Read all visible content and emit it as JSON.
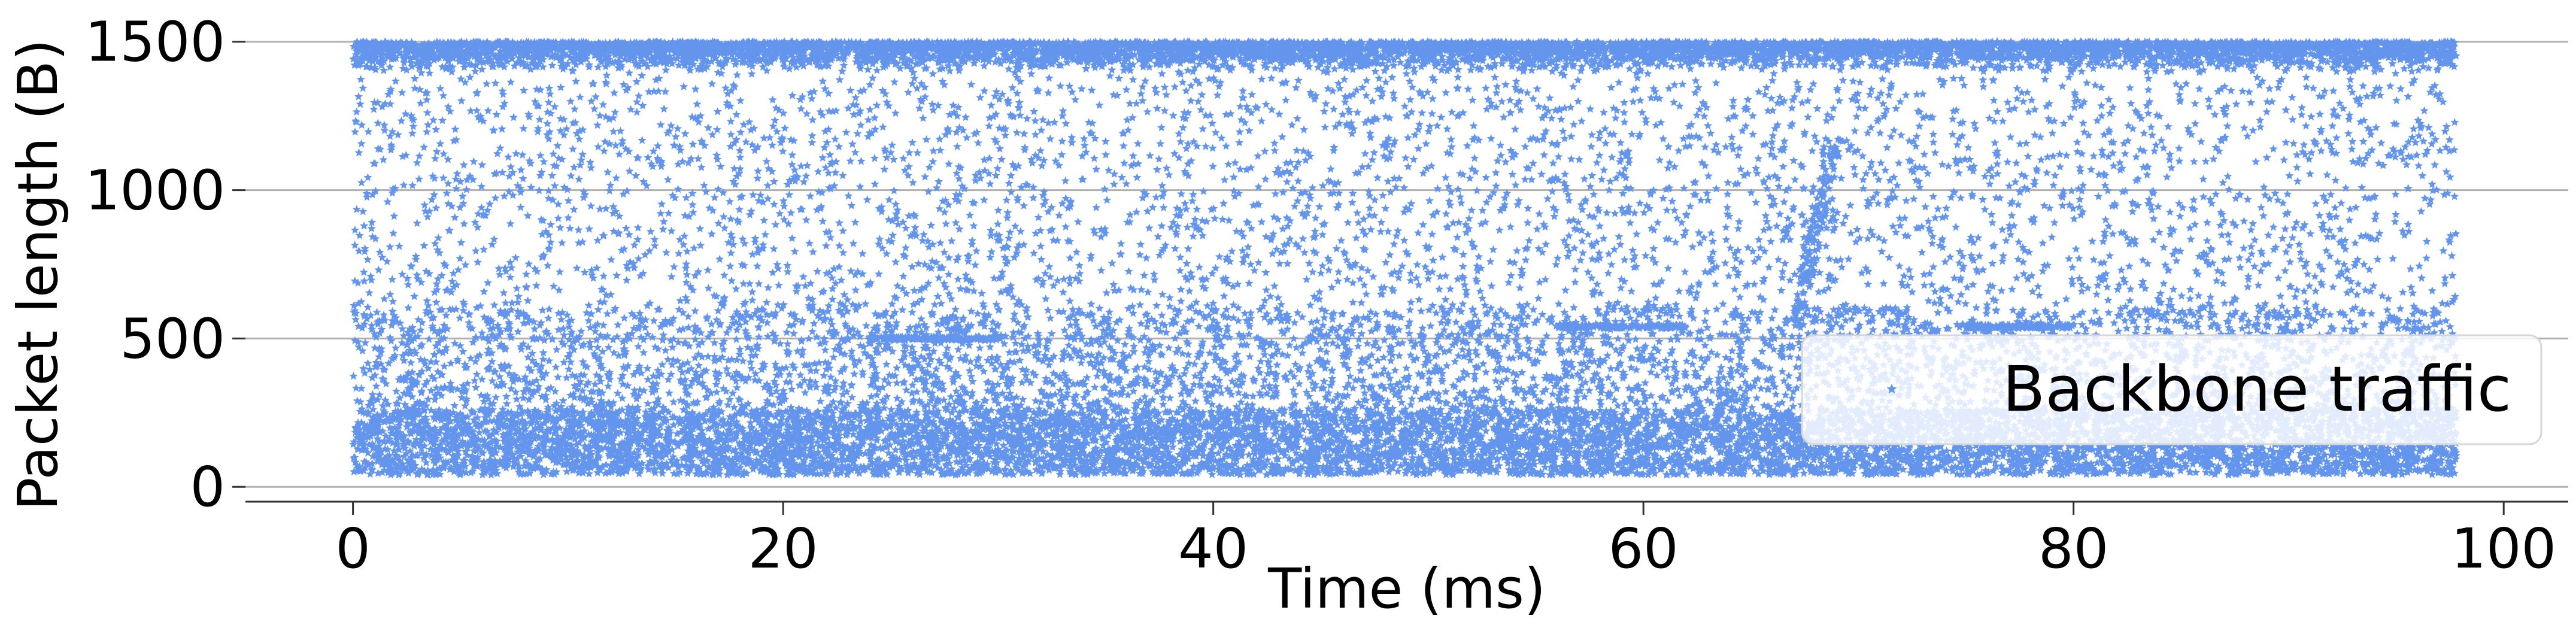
{
  "chart_data": {
    "type": "scatter",
    "title": "",
    "xlabel": "Time (ms)",
    "ylabel": "Packet length (B)",
    "xlim": [
      -5,
      103
    ],
    "ylim": [
      -50,
      1560
    ],
    "xticks": [
      0,
      20,
      40,
      60,
      80,
      100
    ],
    "xtick_labels": [
      "0",
      "20",
      "40",
      "60",
      "80",
      "100"
    ],
    "yticks": [
      0,
      500,
      1000,
      1500
    ],
    "ytick_labels": [
      "0",
      "500",
      "1000",
      "1500"
    ],
    "grid": "horizontal",
    "legend_position": "lower-right",
    "marker": "star",
    "series": [
      {
        "name": "Backbone traffic",
        "color": "#6495ED",
        "x_range": [
          0,
          97.8
        ],
        "y_range": [
          40,
          1500
        ],
        "dense_bands": [
          {
            "y_from": 40,
            "y_to": 260,
            "density": "very high"
          },
          {
            "y_from": 1380,
            "y_to": 1500,
            "density": "very high"
          },
          {
            "y_from": 260,
            "y_to": 600,
            "density": "medium"
          },
          {
            "y_from": 600,
            "y_to": 1380,
            "density": "sparse"
          }
        ],
        "horizontal_runs": [
          {
            "x_from": 56,
            "x_to": 62,
            "y": 540
          },
          {
            "x_from": 75,
            "x_to": 80,
            "y": 540
          },
          {
            "x_from": 24,
            "x_to": 30,
            "y": 500
          }
        ],
        "notable_feature": {
          "x": 68,
          "y_from": 560,
          "y_to": 1150,
          "description": "steep rising streak"
        }
      }
    ]
  }
}
